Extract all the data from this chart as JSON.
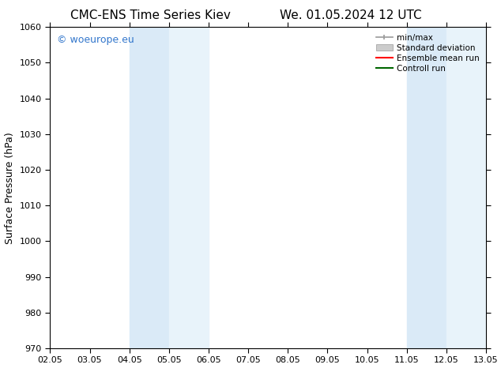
{
  "title_left": "CMC-ENS Time Series Kiev",
  "title_right": "We. 01.05.2024 12 UTC",
  "ylabel": "Surface Pressure (hPa)",
  "ylim": [
    970,
    1060
  ],
  "yticks": [
    970,
    980,
    990,
    1000,
    1010,
    1020,
    1030,
    1040,
    1050,
    1060
  ],
  "xlim_min": 0,
  "xlim_max": 11,
  "xtick_labels": [
    "02.05",
    "03.05",
    "04.05",
    "05.05",
    "06.05",
    "07.05",
    "08.05",
    "09.05",
    "10.05",
    "11.05",
    "12.05",
    "13.05"
  ],
  "xtick_positions": [
    0,
    1,
    2,
    3,
    4,
    5,
    6,
    7,
    8,
    9,
    10,
    11
  ],
  "shaded_regions": [
    {
      "xmin": 2.0,
      "xmax": 3.0,
      "color": "#daeaf7"
    },
    {
      "xmin": 9.0,
      "xmax": 10.0,
      "color": "#daeaf7"
    }
  ],
  "shaded_narrow": [
    {
      "xmin": 3.0,
      "xmax": 4.0,
      "color": "#e8f3fa"
    },
    {
      "xmin": 10.0,
      "xmax": 11.0,
      "color": "#e8f3fa"
    }
  ],
  "watermark_text": "© woeurope.eu",
  "watermark_color": "#3377cc",
  "legend_entries": [
    {
      "label": "min/max",
      "color": "#999999",
      "style": "minmax"
    },
    {
      "label": "Standard deviation",
      "color": "#cccccc",
      "style": "stddev"
    },
    {
      "label": "Ensemble mean run",
      "color": "#ff0000",
      "style": "line"
    },
    {
      "label": "Controll run",
      "color": "#006600",
      "style": "line"
    }
  ],
  "bg_color": "#ffffff",
  "title_fontsize": 11,
  "tick_fontsize": 8,
  "ylabel_fontsize": 9,
  "watermark_fontsize": 9,
  "legend_fontsize": 7.5
}
